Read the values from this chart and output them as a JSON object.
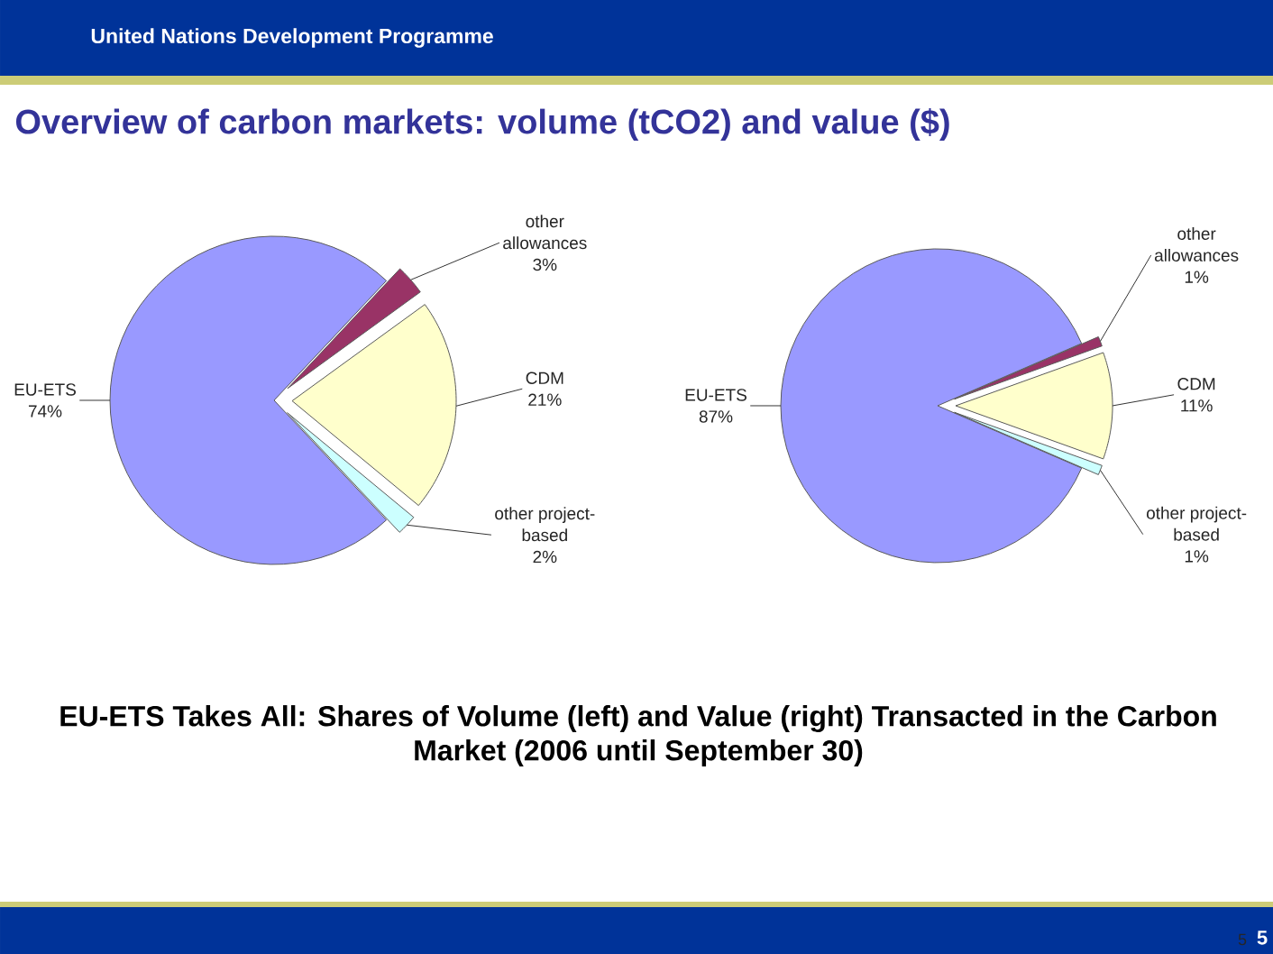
{
  "chart_data": [
    {
      "type": "pie",
      "title": "Overview of carbon markets: volume (tCO2) and value ($)",
      "categories": [
        "EU-ETS",
        "other allowances",
        "CDM",
        "other project-based"
      ],
      "values": [
        74,
        3,
        21,
        2
      ],
      "colors": [
        "#9999ff",
        "#993366",
        "#ffffcc",
        "#ccffff"
      ],
      "value_labels": [
        "74%",
        "3%",
        "21%",
        "2%"
      ],
      "annotations": [
        "United Nations Development Programme",
        "EU-ETS Takes All: Shares of Volume (left) and Value (right) Transacted in the Carbon Market (2006 until September 30)",
        "5",
        "5"
      ]
    },
    {
      "type": "pie",
      "categories": [
        "EU-ETS",
        "other allowances",
        "CDM",
        "other project-based"
      ],
      "values": [
        87,
        1,
        11,
        1
      ],
      "colors": [
        "#9999ff",
        "#993366",
        "#ffffcc",
        "#ccffff"
      ],
      "value_labels": [
        "87%",
        "1%",
        "11%",
        "1%"
      ]
    }
  ]
}
